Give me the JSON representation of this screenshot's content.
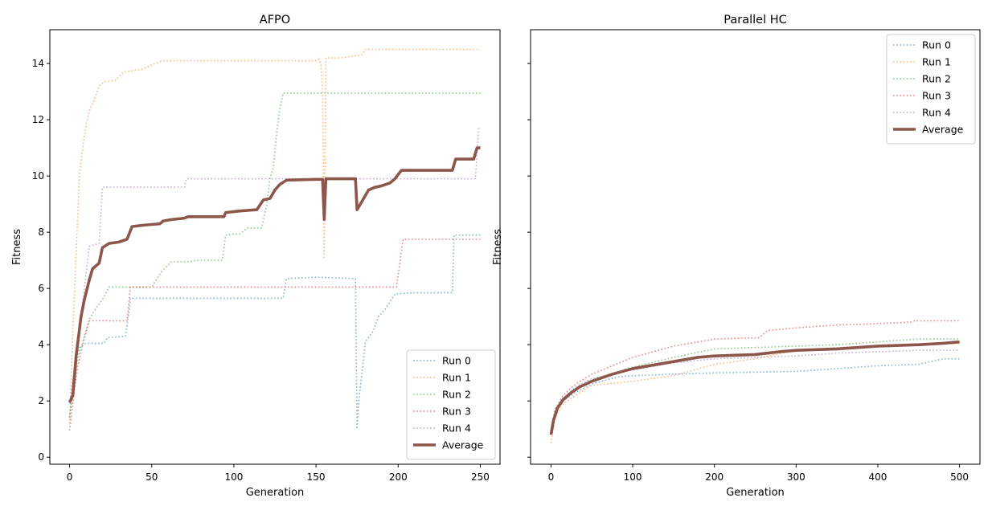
{
  "chart_data": [
    {
      "type": "line",
      "title": "AFPO",
      "xlabel": "Generation",
      "ylabel": "Fitness",
      "xlim": [
        -12,
        262
      ],
      "ylim": [
        -0.25,
        15.2
      ],
      "xticks": [
        0,
        50,
        100,
        150,
        200,
        250
      ],
      "yticks": [
        0,
        2,
        4,
        6,
        8,
        10,
        12,
        14
      ],
      "legend_position": "bottom-right",
      "grid": false,
      "series": [
        {
          "name": "Run 0",
          "color": "#1f77b4",
          "style": "dotted",
          "points": [
            [
              0,
              1.4
            ],
            [
              3,
              3.2
            ],
            [
              6,
              3.9
            ],
            [
              10,
              4.05
            ],
            [
              21,
              4.05
            ],
            [
              23,
              4.25
            ],
            [
              34,
              4.3
            ],
            [
              36,
              5.1
            ],
            [
              37,
              5.65
            ],
            [
              50,
              5.65
            ],
            [
              100,
              5.65
            ],
            [
              130,
              5.65
            ],
            [
              132,
              6.35
            ],
            [
              150,
              6.4
            ],
            [
              174,
              6.35
            ],
            [
              175,
              1.0
            ],
            [
              176,
              2.0
            ],
            [
              178,
              3.0
            ],
            [
              180,
              4.1
            ],
            [
              185,
              4.5
            ],
            [
              188,
              5.0
            ],
            [
              192,
              5.25
            ],
            [
              198,
              5.8
            ],
            [
              210,
              5.85
            ],
            [
              233,
              5.85
            ],
            [
              234,
              7.9
            ],
            [
              250,
              7.9
            ]
          ]
        },
        {
          "name": "Run 1",
          "color": "#ff7f0e",
          "style": "dotted",
          "points": [
            [
              0,
              1.2
            ],
            [
              2,
              4.5
            ],
            [
              4,
              7.2
            ],
            [
              6,
              10.0
            ],
            [
              8,
              11.0
            ],
            [
              10,
              11.8
            ],
            [
              12,
              12.3
            ],
            [
              15,
              12.7
            ],
            [
              18,
              13.2
            ],
            [
              21,
              13.35
            ],
            [
              28,
              13.4
            ],
            [
              33,
              13.7
            ],
            [
              45,
              13.8
            ],
            [
              52,
              14.0
            ],
            [
              57,
              14.1
            ],
            [
              100,
              14.1
            ],
            [
              150,
              14.1
            ],
            [
              152,
              14.15
            ],
            [
              153,
              14.0
            ],
            [
              154,
              13.0
            ],
            [
              155,
              7.1
            ],
            [
              156,
              14.2
            ],
            [
              165,
              14.2
            ],
            [
              178,
              14.3
            ],
            [
              180,
              14.5
            ],
            [
              250,
              14.5
            ]
          ]
        },
        {
          "name": "Run 2",
          "color": "#2ca02c",
          "style": "dotted",
          "points": [
            [
              0,
              1.4
            ],
            [
              5,
              3.5
            ],
            [
              12,
              4.9
            ],
            [
              16,
              5.3
            ],
            [
              20,
              5.6
            ],
            [
              24,
              6.05
            ],
            [
              50,
              6.05
            ],
            [
              56,
              6.6
            ],
            [
              62,
              6.95
            ],
            [
              72,
              6.95
            ],
            [
              78,
              7.0
            ],
            [
              93,
              7.0
            ],
            [
              95,
              7.9
            ],
            [
              104,
              7.95
            ],
            [
              108,
              8.15
            ],
            [
              117,
              8.15
            ],
            [
              120,
              9.0
            ],
            [
              122,
              9.9
            ],
            [
              124,
              10.3
            ],
            [
              126,
              11.5
            ],
            [
              128,
              12.4
            ],
            [
              130,
              12.95
            ],
            [
              250,
              12.95
            ]
          ]
        },
        {
          "name": "Run 3",
          "color": "#d62728",
          "style": "dotted",
          "points": [
            [
              0,
              0.95
            ],
            [
              3,
              2.4
            ],
            [
              5,
              3.2
            ],
            [
              8,
              4.0
            ],
            [
              12,
              4.85
            ],
            [
              35,
              4.85
            ],
            [
              37,
              6.05
            ],
            [
              150,
              6.05
            ],
            [
              199,
              6.05
            ],
            [
              203,
              7.75
            ],
            [
              250,
              7.75
            ]
          ]
        },
        {
          "name": "Run 4",
          "color": "#9467bd",
          "style": "dotted",
          "points": [
            [
              0,
              1.9
            ],
            [
              4,
              3.5
            ],
            [
              8,
              5.5
            ],
            [
              12,
              7.5
            ],
            [
              18,
              7.6
            ],
            [
              20,
              9.6
            ],
            [
              50,
              9.6
            ],
            [
              70,
              9.6
            ],
            [
              71,
              9.9
            ],
            [
              150,
              9.9
            ],
            [
              247,
              9.9
            ],
            [
              249,
              11.7
            ]
          ]
        },
        {
          "name": "Average",
          "color": "#8c564b",
          "style": "solid",
          "points": [
            [
              0,
              1.95
            ],
            [
              2,
              2.2
            ],
            [
              4,
              3.6
            ],
            [
              7,
              5.0
            ],
            [
              9,
              5.6
            ],
            [
              12,
              6.3
            ],
            [
              14,
              6.7
            ],
            [
              18,
              6.9
            ],
            [
              20,
              7.45
            ],
            [
              24,
              7.6
            ],
            [
              30,
              7.65
            ],
            [
              35,
              7.75
            ],
            [
              38,
              8.2
            ],
            [
              45,
              8.25
            ],
            [
              55,
              8.3
            ],
            [
              57,
              8.4
            ],
            [
              62,
              8.45
            ],
            [
              70,
              8.5
            ],
            [
              72,
              8.55
            ],
            [
              80,
              8.55
            ],
            [
              94,
              8.55
            ],
            [
              95,
              8.7
            ],
            [
              103,
              8.75
            ],
            [
              114,
              8.8
            ],
            [
              118,
              9.15
            ],
            [
              122,
              9.2
            ],
            [
              125,
              9.5
            ],
            [
              128,
              9.7
            ],
            [
              132,
              9.85
            ],
            [
              150,
              9.88
            ],
            [
              154,
              9.88
            ],
            [
              155,
              8.45
            ],
            [
              156,
              9.9
            ],
            [
              174,
              9.9
            ],
            [
              175,
              8.8
            ],
            [
              178,
              9.1
            ],
            [
              182,
              9.5
            ],
            [
              186,
              9.6
            ],
            [
              190,
              9.65
            ],
            [
              195,
              9.75
            ],
            [
              198,
              9.9
            ],
            [
              202,
              10.2
            ],
            [
              233,
              10.2
            ],
            [
              235,
              10.6
            ],
            [
              246,
              10.6
            ],
            [
              248,
              11.0
            ],
            [
              250,
              11.0
            ]
          ]
        }
      ]
    },
    {
      "type": "line",
      "title": "Parallel HC",
      "xlabel": "Generation",
      "ylabel": "Fitness",
      "xlim": [
        -25,
        525
      ],
      "ylim": [
        -0.25,
        15.2
      ],
      "xticks": [
        0,
        100,
        200,
        300,
        400,
        500
      ],
      "yticks": [
        0,
        2,
        4,
        6,
        8,
        10,
        12,
        14
      ],
      "legend_position": "top-right",
      "grid": false,
      "series": [
        {
          "name": "Run 0",
          "color": "#1f77b4",
          "style": "dotted",
          "points": [
            [
              0,
              0.9
            ],
            [
              5,
              1.6
            ],
            [
              15,
              2.0
            ],
            [
              30,
              2.3
            ],
            [
              50,
              2.6
            ],
            [
              80,
              2.85
            ],
            [
              100,
              2.9
            ],
            [
              150,
              2.95
            ],
            [
              200,
              3.0
            ],
            [
              300,
              3.05
            ],
            [
              350,
              3.15
            ],
            [
              400,
              3.25
            ],
            [
              450,
              3.3
            ],
            [
              480,
              3.5
            ],
            [
              500,
              3.5
            ]
          ]
        },
        {
          "name": "Run 1",
          "color": "#ff7f0e",
          "style": "dotted",
          "points": [
            [
              0,
              0.5
            ],
            [
              5,
              1.4
            ],
            [
              15,
              1.9
            ],
            [
              30,
              2.2
            ],
            [
              50,
              2.55
            ],
            [
              100,
              2.7
            ],
            [
              150,
              2.9
            ],
            [
              200,
              3.3
            ],
            [
              250,
              3.5
            ],
            [
              300,
              3.8
            ],
            [
              350,
              3.9
            ],
            [
              400,
              3.95
            ],
            [
              450,
              4.0
            ],
            [
              500,
              4.05
            ]
          ]
        },
        {
          "name": "Run 2",
          "color": "#2ca02c",
          "style": "dotted",
          "points": [
            [
              0,
              0.8
            ],
            [
              5,
              1.6
            ],
            [
              15,
              2.1
            ],
            [
              30,
              2.4
            ],
            [
              50,
              2.75
            ],
            [
              100,
              3.2
            ],
            [
              150,
              3.55
            ],
            [
              200,
              3.85
            ],
            [
              250,
              3.9
            ],
            [
              300,
              3.95
            ],
            [
              350,
              4.0
            ],
            [
              400,
              4.1
            ],
            [
              450,
              4.2
            ],
            [
              500,
              4.2
            ]
          ]
        },
        {
          "name": "Run 3",
          "color": "#d62728",
          "style": "dotted",
          "points": [
            [
              0,
              0.9
            ],
            [
              5,
              1.7
            ],
            [
              15,
              2.2
            ],
            [
              30,
              2.6
            ],
            [
              50,
              2.95
            ],
            [
              100,
              3.55
            ],
            [
              150,
              3.95
            ],
            [
              200,
              4.2
            ],
            [
              255,
              4.25
            ],
            [
              265,
              4.5
            ],
            [
              300,
              4.6
            ],
            [
              350,
              4.7
            ],
            [
              400,
              4.75
            ],
            [
              440,
              4.8
            ],
            [
              445,
              4.85
            ],
            [
              500,
              4.85
            ]
          ]
        },
        {
          "name": "Run 4",
          "color": "#9467bd",
          "style": "dotted",
          "points": [
            [
              0,
              1.0
            ],
            [
              5,
              1.7
            ],
            [
              15,
              2.1
            ],
            [
              30,
              2.5
            ],
            [
              50,
              2.8
            ],
            [
              100,
              3.1
            ],
            [
              150,
              3.35
            ],
            [
              200,
              3.5
            ],
            [
              250,
              3.55
            ],
            [
              300,
              3.6
            ],
            [
              350,
              3.7
            ],
            [
              400,
              3.75
            ],
            [
              450,
              3.8
            ],
            [
              500,
              3.8
            ]
          ]
        },
        {
          "name": "Average",
          "color": "#8c564b",
          "style": "solid",
          "points": [
            [
              0,
              0.8
            ],
            [
              3,
              1.3
            ],
            [
              8,
              1.75
            ],
            [
              15,
              2.05
            ],
            [
              25,
              2.3
            ],
            [
              35,
              2.5
            ],
            [
              50,
              2.7
            ],
            [
              60,
              2.8
            ],
            [
              75,
              2.95
            ],
            [
              100,
              3.15
            ],
            [
              120,
              3.25
            ],
            [
              150,
              3.4
            ],
            [
              180,
              3.55
            ],
            [
              200,
              3.6
            ],
            [
              250,
              3.65
            ],
            [
              280,
              3.75
            ],
            [
              300,
              3.8
            ],
            [
              350,
              3.85
            ],
            [
              400,
              3.95
            ],
            [
              450,
              4.0
            ],
            [
              480,
              4.05
            ],
            [
              500,
              4.1
            ]
          ]
        }
      ]
    }
  ]
}
